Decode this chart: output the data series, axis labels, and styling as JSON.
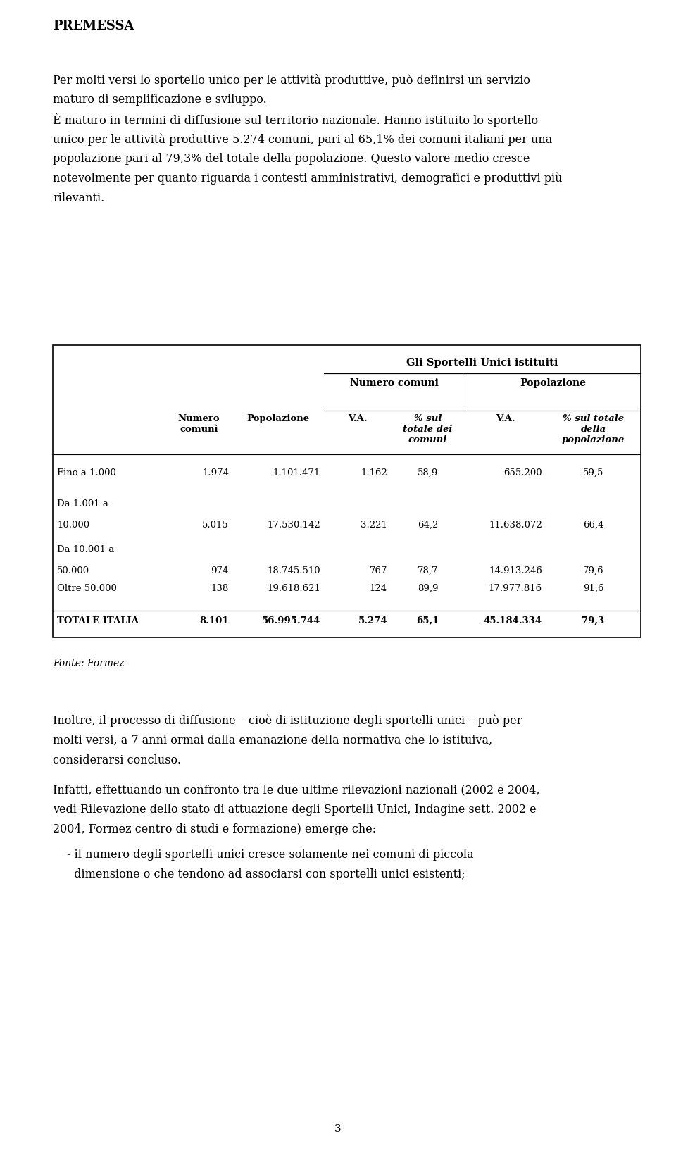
{
  "title": "PREMESSA",
  "para1_lines": [
    "Per molti versi lo sportello unico per le attività produttive, può definirsi un servizio",
    "maturo di semplificazione e sviluppo."
  ],
  "para2_lines": [
    "È maturo in termini di diffusione sul territorio nazionale. Hanno istituito lo sportello",
    "unico per le attività produttive 5.274 comuni, pari al 65,1% dei comuni italiani per una",
    "popolazione pari al 79,3% del totale della popolazione. Questo valore medio cresce",
    "notevolmente per quanto riguarda i contesti amministrativi, demografici e produttivi più",
    "rilevanti."
  ],
  "table_rows": [
    [
      "Fino a 1.000",
      "1.974",
      "1.101.471",
      "1.162",
      "58,9",
      "655.200",
      "59,5"
    ],
    [
      "Da 1.001 a",
      "",
      "",
      "",
      "",
      "",
      ""
    ],
    [
      "10.000",
      "5.015",
      "17.530.142",
      "3.221",
      "64,2",
      "11.638.072",
      "66,4"
    ],
    [
      "Da 10.001 a",
      "",
      "",
      "",
      "",
      "",
      ""
    ],
    [
      "50.000",
      "974",
      "18.745.510",
      "767",
      "78,7",
      "14.913.246",
      "79,6"
    ],
    [
      "Oltre 50.000",
      "138",
      "19.618.621",
      "124",
      "89,9",
      "17.977.816",
      "91,6"
    ]
  ],
  "table_total_row": [
    "TOTALE ITALIA",
    "8.101",
    "56.995.744",
    "5.274",
    "65,1",
    "45.184.334",
    "79,3"
  ],
  "fonte": "Fonte: Formez",
  "para3_lines": [
    "Inoltre, il processo di diffusione – cioè di istituzione degli sportelli unici – può per",
    "molti versi, a 7 anni ormai dalla emanazione della normativa che lo istituiva,",
    "considerarsi concluso."
  ],
  "para4_lines": [
    "Infatti, effettuando un confronto tra le due ultime rilevazioni nazionali (2002 e 2004,",
    "vedi Rilevazione dello stato di attuazione degli Sportelli Unici, Indagine sett. 2002 e",
    "2004, Formez centro di studi e formazione) emerge che:"
  ],
  "bullet1_lines": [
    "- il numero degli sportelli unici cresce solamente nei comuni di piccola",
    "  dimensione o che tendono ad associarsi con sportelli unici esistenti;"
  ],
  "page_number": "3",
  "bg_color": "#ffffff",
  "text_color": "#000000"
}
